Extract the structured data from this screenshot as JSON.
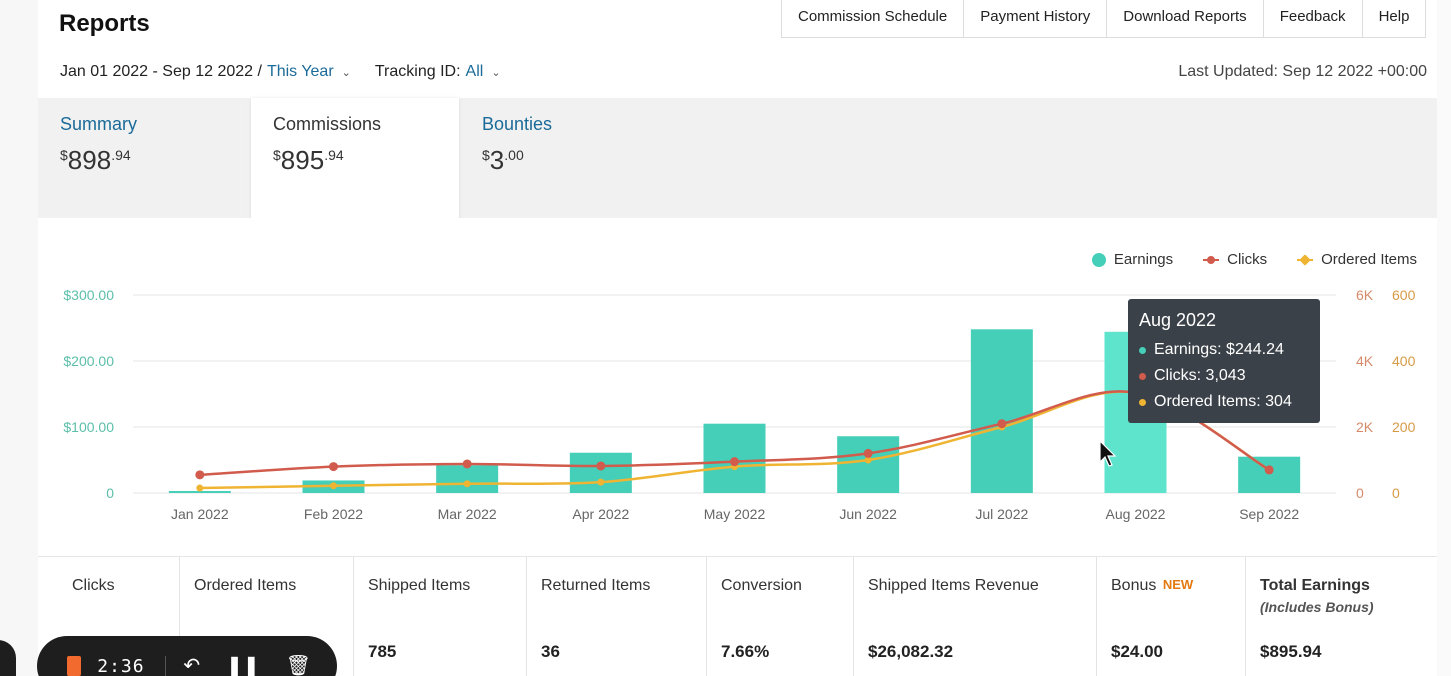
{
  "page": {
    "title": "Reports"
  },
  "topnav": [
    "Commission Schedule",
    "Payment History",
    "Download Reports",
    "Feedback",
    "Help"
  ],
  "filters": {
    "date_range": "Jan 01 2022 - Sep 12 2022 /",
    "period_link": "This Year",
    "tracking_label": "Tracking ID:",
    "tracking_value": "All",
    "last_updated": "Last Updated: Sep 12 2022 +00:00"
  },
  "tabs": [
    {
      "label": "Summary",
      "dollar": "$",
      "whole": "898",
      "cents": ".94",
      "active": false
    },
    {
      "label": "Commissions",
      "dollar": "$",
      "whole": "895",
      "cents": ".94",
      "active": true
    },
    {
      "label": "Bounties",
      "dollar": "$",
      "whole": "3",
      "cents": ".00",
      "active": false
    }
  ],
  "legend": {
    "earnings": "Earnings",
    "clicks": "Clicks",
    "ordered": "Ordered Items"
  },
  "colors": {
    "earnings": "#45cfb8",
    "clicks": "#d15b4c",
    "ordered": "#f0b433",
    "link": "#1a6b99",
    "highlight_bar": "#5ee3cc"
  },
  "chart_data": {
    "type": "bar",
    "categories": [
      "Jan 2022",
      "Feb 2022",
      "Mar 2022",
      "Apr 2022",
      "May 2022",
      "Jun 2022",
      "Jul 2022",
      "Aug 2022",
      "Sep 2022"
    ],
    "series": [
      {
        "name": "Earnings",
        "type": "bar",
        "axis": "left",
        "values": [
          3,
          19,
          42,
          61,
          105,
          86,
          248,
          244.24,
          55
        ]
      },
      {
        "name": "Clicks",
        "type": "line",
        "axis": "right-outer",
        "values": [
          550,
          800,
          880,
          820,
          950,
          1200,
          2100,
          3043,
          700
        ]
      },
      {
        "name": "Ordered Items",
        "type": "line",
        "axis": "right-inner",
        "values": [
          15,
          22,
          28,
          33,
          80,
          100,
          200,
          304,
          70
        ]
      }
    ],
    "y_left": {
      "ticks": [
        "$300.00",
        "$200.00",
        "$100.00",
        "0"
      ],
      "range": [
        0,
        300
      ]
    },
    "y_right_outer": {
      "ticks": [
        "6K",
        "4K",
        "2K",
        "0"
      ],
      "range": [
        0,
        6000
      ]
    },
    "y_right_inner": {
      "ticks": [
        "600",
        "400",
        "200",
        "0"
      ],
      "range": [
        0,
        600
      ]
    },
    "highlighted_category": "Aug 2022",
    "legend_position": "top-right",
    "grid": true
  },
  "tooltip": {
    "title": "Aug 2022",
    "earnings": "Earnings: $244.24",
    "clicks": "Clicks: 3,043",
    "ordered": "Ordered Items: 304"
  },
  "stats": [
    {
      "label": "Clicks",
      "value": ""
    },
    {
      "label": "Ordered Items",
      "value": ""
    },
    {
      "label": "Shipped Items",
      "value": "785"
    },
    {
      "label": "Returned Items",
      "value": "36"
    },
    {
      "label": "Conversion",
      "value": "7.66%"
    },
    {
      "label": "Shipped Items Revenue",
      "value": "$26,082.32"
    },
    {
      "label": "Bonus",
      "badge": "NEW",
      "value": "$24.00"
    },
    {
      "label": "Total Earnings",
      "sub_label": "(Includes Bonus)",
      "value": "$895.94"
    }
  ],
  "recorder": {
    "time": "2:36",
    "undo_icon": "undo-icon",
    "pause_icon": "pause-icon",
    "trash_icon": "trash-icon"
  }
}
